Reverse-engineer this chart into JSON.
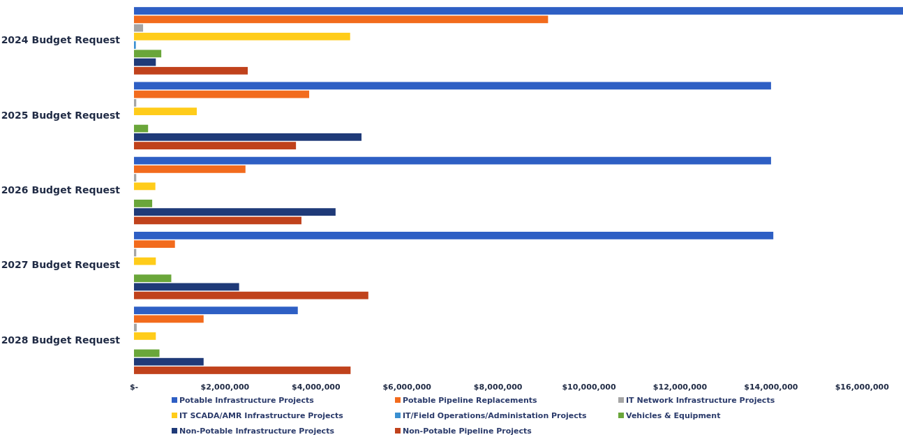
{
  "chart_data": {
    "type": "bar",
    "orientation": "horizontal",
    "categories": [
      "2024 Budget Request",
      "2025 Budget Request",
      "2026 Budget Request",
      "2027 Budget Request",
      "2028 Budget Request"
    ],
    "series": [
      {
        "name": "Potable Infrastructure Projects",
        "color": "#2e5fc4",
        "values": [
          16900000,
          14000000,
          14000000,
          14050000,
          3600000
        ]
      },
      {
        "name": "Potable Pipeline Replacements",
        "color": "#f26b1d",
        "values": [
          9100000,
          3850000,
          2450000,
          900000,
          1530000
        ]
      },
      {
        "name": "IT Network Infrastructure Projects",
        "color": "#a5a5a5",
        "values": [
          200000,
          50000,
          50000,
          50000,
          60000
        ]
      },
      {
        "name": "IT SCADA/AMR Infrastructure Projects",
        "color": "#ffcc1a",
        "values": [
          4750000,
          1380000,
          470000,
          480000,
          480000
        ]
      },
      {
        "name": "IT/Field Operations/Administation Projects",
        "color": "#3a8fd0",
        "values": [
          40000,
          0,
          0,
          0,
          0
        ]
      },
      {
        "name": "Vehicles & Equipment",
        "color": "#6aa63a",
        "values": [
          600000,
          310000,
          400000,
          820000,
          560000
        ]
      },
      {
        "name": "Non-Potable Infrastructure Projects",
        "color": "#1f3a78",
        "values": [
          480000,
          5000000,
          4430000,
          2310000,
          1530000
        ]
      },
      {
        "name": "Non-Potable Pipeline Projects",
        "color": "#c0421c",
        "values": [
          2500000,
          3560000,
          3680000,
          5150000,
          4760000
        ]
      }
    ],
    "xlim": [
      0,
      16900000
    ],
    "xticks": [
      {
        "value": 0,
        "label": "$-"
      },
      {
        "value": 2000000,
        "label": "$2,000,000"
      },
      {
        "value": 4000000,
        "label": "$4,000,000"
      },
      {
        "value": 6000000,
        "label": "$6,000,000"
      },
      {
        "value": 8000000,
        "label": "$8,000,000"
      },
      {
        "value": 10000000,
        "label": "$10,000,000"
      },
      {
        "value": 12000000,
        "label": "$12,000,000"
      },
      {
        "value": 14000000,
        "label": "$14,000,000"
      },
      {
        "value": 16000000,
        "label": "$16,000,000"
      }
    ],
    "grid": false,
    "legend": "bottom"
  }
}
